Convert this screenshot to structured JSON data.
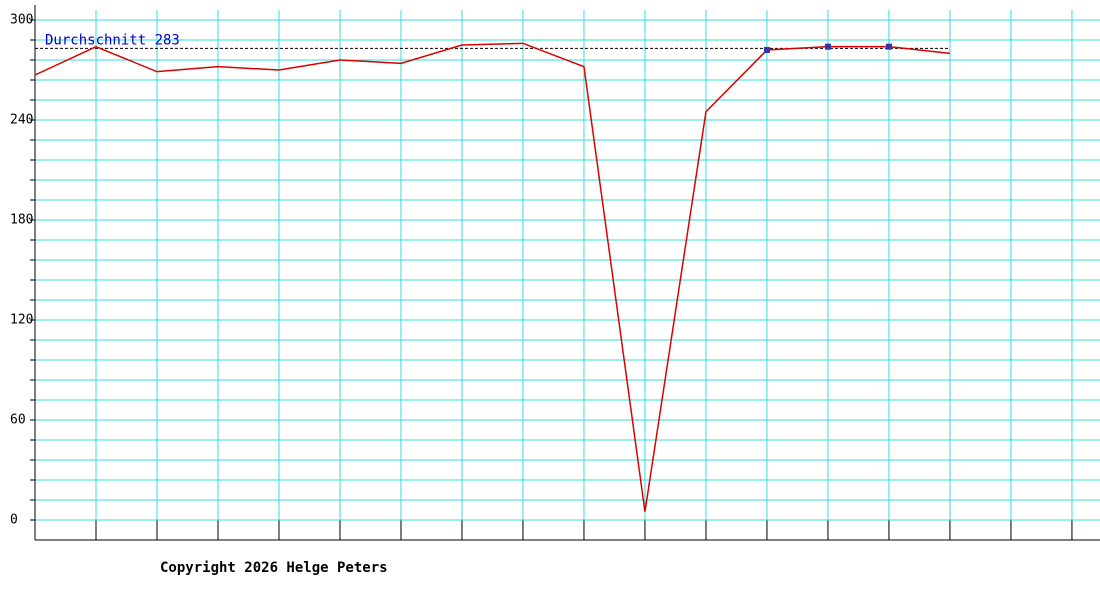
{
  "chart_data": {
    "type": "line",
    "x": [
      0,
      1,
      2,
      3,
      4,
      5,
      6,
      7,
      8,
      9,
      10,
      11,
      12,
      13,
      14,
      15
    ],
    "series": [
      {
        "color": "#dd0000",
        "marker_color": "#3333aa",
        "marker_indices": [
          12,
          13,
          14
        ],
        "values": [
          267,
          284,
          269,
          272,
          270,
          276,
          274,
          285,
          286,
          272,
          5,
          245,
          282,
          284,
          284,
          280
        ]
      }
    ],
    "xlim": [
      0,
      17.46
    ],
    "xticks": [
      0,
      1,
      2,
      3,
      4,
      5,
      6,
      7,
      8,
      9,
      10,
      11,
      12,
      13,
      14,
      15,
      16,
      17
    ],
    "ylim": [
      -12,
      306
    ],
    "yticks": [
      0,
      60,
      120,
      180,
      240,
      300
    ],
    "yminorticks": [
      12,
      24,
      36,
      48,
      72,
      84,
      96,
      108,
      132,
      144,
      156,
      168,
      192,
      204,
      216,
      228,
      252,
      264,
      276,
      288
    ],
    "grid": true,
    "grid_color": "#33dddd",
    "average": {
      "label": "Durchschnitt 283",
      "value": 283,
      "color": "#0000cc"
    },
    "footer": "Copyright 2026 Helge Peters"
  }
}
